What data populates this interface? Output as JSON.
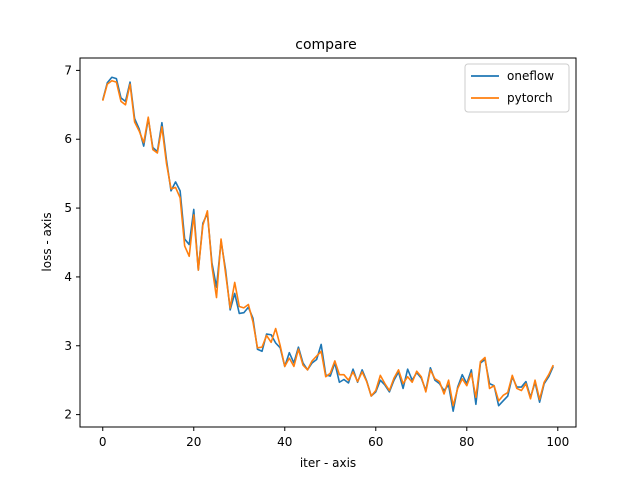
{
  "chart_data": {
    "type": "line",
    "title": "compare",
    "xlabel": "iter - axis",
    "ylabel": "loss - axis",
    "xlim": [
      -5,
      104
    ],
    "ylim": [
      1.82,
      7.18
    ],
    "xticks": [
      0,
      20,
      40,
      60,
      80,
      100
    ],
    "yticks": [
      2,
      3,
      4,
      5,
      6,
      7
    ],
    "grid": false,
    "legend_position": "top-right",
    "series": [
      {
        "name": "oneflow",
        "color": "#1f77b4",
        "x": [
          0,
          1,
          2,
          3,
          4,
          5,
          6,
          7,
          8,
          9,
          10,
          11,
          12,
          13,
          14,
          15,
          16,
          17,
          18,
          19,
          20,
          21,
          22,
          23,
          24,
          25,
          26,
          27,
          28,
          29,
          30,
          31,
          32,
          33,
          34,
          35,
          36,
          37,
          38,
          39,
          40,
          41,
          42,
          43,
          44,
          45,
          46,
          47,
          48,
          49,
          50,
          51,
          52,
          53,
          54,
          55,
          56,
          57,
          58,
          59,
          60,
          61,
          62,
          63,
          64,
          65,
          66,
          67,
          68,
          69,
          70,
          71,
          72,
          73,
          74,
          75,
          76,
          77,
          78,
          79,
          80,
          81,
          82,
          83,
          84,
          85,
          86,
          87,
          88,
          89,
          90,
          91,
          92,
          93,
          94,
          95,
          96,
          97,
          98,
          99
        ],
        "values": [
          6.57,
          6.82,
          6.9,
          6.88,
          6.6,
          6.55,
          6.83,
          6.3,
          6.15,
          5.9,
          6.3,
          5.88,
          5.82,
          6.24,
          5.7,
          5.25,
          5.38,
          5.25,
          4.55,
          4.47,
          4.98,
          4.1,
          4.78,
          4.92,
          4.2,
          3.85,
          4.52,
          4.1,
          3.52,
          3.76,
          3.47,
          3.48,
          3.56,
          3.4,
          2.95,
          2.92,
          3.17,
          3.16,
          3.04,
          2.97,
          2.7,
          2.9,
          2.75,
          2.98,
          2.75,
          2.65,
          2.75,
          2.8,
          3.02,
          2.58,
          2.56,
          2.75,
          2.47,
          2.51,
          2.46,
          2.66,
          2.47,
          2.65,
          2.49,
          2.27,
          2.33,
          2.5,
          2.43,
          2.33,
          2.5,
          2.62,
          2.38,
          2.66,
          2.5,
          2.61,
          2.53,
          2.35,
          2.68,
          2.5,
          2.45,
          2.35,
          2.43,
          2.05,
          2.4,
          2.58,
          2.45,
          2.65,
          2.15,
          2.75,
          2.8,
          2.45,
          2.42,
          2.13,
          2.2,
          2.27,
          2.55,
          2.4,
          2.4,
          2.48,
          2.25,
          2.47,
          2.18,
          2.45,
          2.55,
          2.7
        ]
      },
      {
        "name": "pytorch",
        "color": "#ff7f0e",
        "x": [
          0,
          1,
          2,
          3,
          4,
          5,
          6,
          7,
          8,
          9,
          10,
          11,
          12,
          13,
          14,
          15,
          16,
          17,
          18,
          19,
          20,
          21,
          22,
          23,
          24,
          25,
          26,
          27,
          28,
          29,
          30,
          31,
          32,
          33,
          34,
          35,
          36,
          37,
          38,
          39,
          40,
          41,
          42,
          43,
          44,
          45,
          46,
          47,
          48,
          49,
          50,
          51,
          52,
          53,
          54,
          55,
          56,
          57,
          58,
          59,
          60,
          61,
          62,
          63,
          64,
          65,
          66,
          67,
          68,
          69,
          70,
          71,
          72,
          73,
          74,
          75,
          76,
          77,
          78,
          79,
          80,
          81,
          82,
          83,
          84,
          85,
          86,
          87,
          88,
          89,
          90,
          91,
          92,
          93,
          94,
          95,
          96,
          97,
          98,
          99
        ],
        "values": [
          6.56,
          6.8,
          6.85,
          6.83,
          6.55,
          6.5,
          6.8,
          6.25,
          6.12,
          5.95,
          6.32,
          5.85,
          5.8,
          6.18,
          5.65,
          5.28,
          5.3,
          5.15,
          4.45,
          4.3,
          4.9,
          4.1,
          4.75,
          4.96,
          4.15,
          3.7,
          4.55,
          4.05,
          3.55,
          3.92,
          3.57,
          3.55,
          3.6,
          3.35,
          2.97,
          2.98,
          3.15,
          3.05,
          3.25,
          3.0,
          2.7,
          2.82,
          2.7,
          2.95,
          2.72,
          2.65,
          2.78,
          2.85,
          2.92,
          2.55,
          2.6,
          2.78,
          2.58,
          2.58,
          2.5,
          2.62,
          2.48,
          2.62,
          2.48,
          2.27,
          2.35,
          2.57,
          2.45,
          2.35,
          2.53,
          2.65,
          2.45,
          2.55,
          2.47,
          2.63,
          2.55,
          2.33,
          2.65,
          2.52,
          2.48,
          2.3,
          2.5,
          2.13,
          2.38,
          2.52,
          2.42,
          2.6,
          2.25,
          2.77,
          2.83,
          2.38,
          2.42,
          2.2,
          2.28,
          2.32,
          2.57,
          2.38,
          2.35,
          2.45,
          2.23,
          2.5,
          2.22,
          2.47,
          2.58,
          2.72
        ]
      }
    ]
  }
}
